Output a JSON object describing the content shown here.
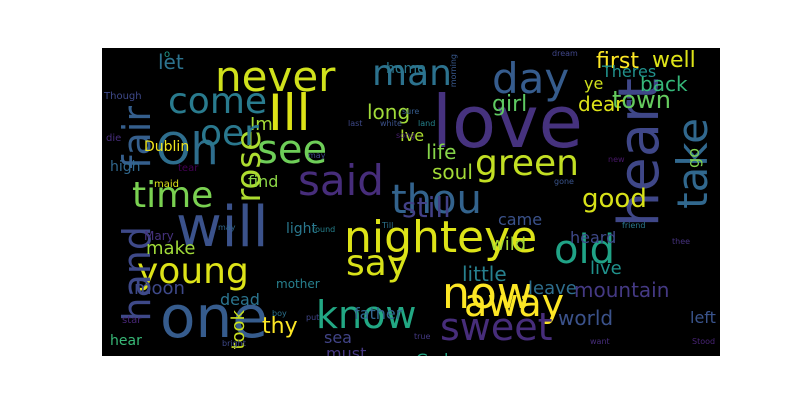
{
  "colors": {
    "background": "#000000",
    "page": "#ffffff"
  },
  "words": [
    {
      "text": "love",
      "color": "#46327e"
    },
    {
      "text": "one",
      "color": "#365c8d"
    },
    {
      "text": "will",
      "color": "#3b528b"
    },
    {
      "text": "heart",
      "color": "#3f4788"
    },
    {
      "text": "Ill",
      "color": "#dde318"
    },
    {
      "text": "night",
      "color": "#dde318"
    },
    {
      "text": "eye",
      "color": "#dde318"
    },
    {
      "text": "now",
      "color": "#fde725"
    },
    {
      "text": "day",
      "color": "#365c8d"
    },
    {
      "text": "said",
      "color": "#472d7b"
    },
    {
      "text": "never",
      "color": "#d0e11c"
    },
    {
      "text": "Oh",
      "color": "#2e6e8e"
    },
    {
      "text": "see",
      "color": "#6ece58"
    },
    {
      "text": "old",
      "color": "#20a386"
    },
    {
      "text": "thou",
      "color": "#33638d"
    },
    {
      "text": "take",
      "color": "#31688e"
    },
    {
      "text": "away",
      "color": "#fde725"
    },
    {
      "text": "sweet",
      "color": "#472d7b"
    },
    {
      "text": "know",
      "color": "#22a884"
    },
    {
      "text": "say",
      "color": "#d8e219"
    },
    {
      "text": "young",
      "color": "#dde318"
    },
    {
      "text": "come",
      "color": "#297b8e"
    },
    {
      "text": "man",
      "color": "#2c728e"
    },
    {
      "text": "time",
      "color": "#7ad151"
    },
    {
      "text": "green",
      "color": "#c2df23"
    },
    {
      "text": "fair",
      "color": "#355f8d"
    },
    {
      "text": "hand",
      "color": "#3e4989"
    },
    {
      "text": "rose",
      "color": "#addc30"
    },
    {
      "text": "good",
      "color": "#d8e219"
    },
    {
      "text": "still",
      "color": "#424086"
    },
    {
      "text": "first",
      "color": "#fde725"
    },
    {
      "text": "well",
      "color": "#dde318"
    },
    {
      "text": "town",
      "color": "#65cb5e"
    },
    {
      "text": "back",
      "color": "#35b779"
    },
    {
      "text": "dear",
      "color": "#dde318"
    },
    {
      "text": "girl",
      "color": "#5ec962"
    },
    {
      "text": "long",
      "color": "#a0da39"
    },
    {
      "text": "soul",
      "color": "#a2da37"
    },
    {
      "text": "life",
      "color": "#86d549"
    },
    {
      "text": "mountain",
      "color": "#443983"
    },
    {
      "text": "world",
      "color": "#3b528b"
    },
    {
      "text": "little",
      "color": "#27808e"
    },
    {
      "text": "leave",
      "color": "#2e6e8e"
    },
    {
      "text": "wild",
      "color": "#a5db36"
    },
    {
      "text": "live",
      "color": "#20928c"
    },
    {
      "text": "make",
      "color": "#a0da39"
    },
    {
      "text": "moon",
      "color": "#3e4989"
    },
    {
      "text": "thy",
      "color": "#fde725"
    },
    {
      "text": "took",
      "color": "#cae11f"
    },
    {
      "text": "father",
      "color": "#32658e"
    },
    {
      "text": "dead",
      "color": "#2b748e"
    },
    {
      "text": "sea",
      "color": "#414487"
    },
    {
      "text": "must",
      "color": "#453781"
    },
    {
      "text": "God",
      "color": "#22a884"
    },
    {
      "text": "hear",
      "color": "#38b977"
    },
    {
      "text": "let",
      "color": "#2c728e"
    },
    {
      "text": "Im",
      "color": "#a5db36"
    },
    {
      "text": "find",
      "color": "#8bd646"
    },
    {
      "text": "Ive",
      "color": "#addc30"
    },
    {
      "text": "ye",
      "color": "#d0e11c"
    },
    {
      "text": "Theres",
      "color": "#21918c"
    },
    {
      "text": "came",
      "color": "#3b528b"
    },
    {
      "text": "heard",
      "color": "#3e4989"
    },
    {
      "text": "go",
      "color": "#81d34d"
    },
    {
      "text": "left",
      "color": "#3a548c"
    },
    {
      "text": "high",
      "color": "#31688e"
    },
    {
      "text": "light",
      "color": "#2a788e"
    },
    {
      "text": "mother",
      "color": "#27808e"
    },
    {
      "text": "home",
      "color": "#2a788e"
    },
    {
      "text": "Dublin",
      "color": "#f1e51d"
    },
    {
      "text": "o",
      "color": "#1f988b"
    },
    {
      "text": "oer",
      "color": "#2a788e"
    },
    {
      "text": "Mary",
      "color": "#46327e"
    },
    {
      "text": "boy",
      "color": "#2c728e"
    },
    {
      "text": "put",
      "color": "#404688"
    },
    {
      "text": "Though",
      "color": "#3e4989"
    },
    {
      "text": "maid",
      "color": "#dde318"
    },
    {
      "text": "tear",
      "color": "#440154"
    },
    {
      "text": "die",
      "color": "#472d7b"
    },
    {
      "text": "may",
      "color": "#31688e"
    },
    {
      "text": "star",
      "color": "#482677"
    },
    {
      "text": "friend",
      "color": "#2a788e"
    },
    {
      "text": "round",
      "color": "#26828e"
    },
    {
      "text": "Till",
      "color": "#2c728e"
    },
    {
      "text": "true",
      "color": "#443983"
    },
    {
      "text": "bright",
      "color": "#3e4989"
    },
    {
      "text": "song",
      "color": "#481f70"
    },
    {
      "text": "land",
      "color": "#25848e"
    },
    {
      "text": "white",
      "color": "#3b528b"
    },
    {
      "text": "sure",
      "color": "#365c8d"
    },
    {
      "text": "last",
      "color": "#3e4989"
    },
    {
      "text": "morning",
      "color": "#38588c"
    },
    {
      "text": "dream",
      "color": "#404688"
    },
    {
      "text": "new",
      "color": "#481769"
    },
    {
      "text": "gone",
      "color": "#3a548c"
    },
    {
      "text": "thee",
      "color": "#46327e"
    },
    {
      "text": "want",
      "color": "#472d7b"
    },
    {
      "text": "Stood",
      "color": "#482475"
    },
    {
      "text": "may",
      "color": "#3f4788"
    }
  ]
}
